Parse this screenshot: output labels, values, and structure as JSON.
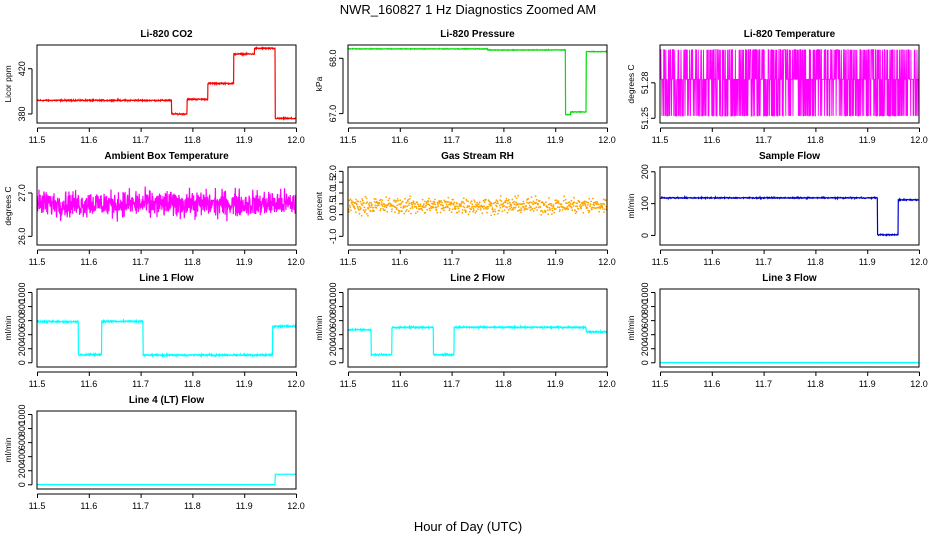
{
  "figure": {
    "title": "NWR_160827  1 Hz Diagnostics Zoomed AM",
    "xlabel": "Hour of Day (UTC)"
  },
  "colors": {
    "red": "#ff0000",
    "green": "#00dd00",
    "magenta": "#ff00ff",
    "orange": "#ffa500",
    "blue": "#0000cd",
    "cyan": "#00ffff"
  },
  "chart_data": [
    {
      "type": "line",
      "title": "Li-820 CO2",
      "ylabel": "Licor ppm",
      "color": "red",
      "xlim": [
        11.5,
        12.0
      ],
      "ylim": [
        372,
        441
      ],
      "yticks": [
        380,
        420
      ],
      "xticks": [
        11.5,
        11.6,
        11.7,
        11.8,
        11.9,
        12.0
      ],
      "steps": [
        [
          11.5,
          392
        ],
        [
          11.76,
          380
        ],
        [
          11.79,
          393
        ],
        [
          11.83,
          407
        ],
        [
          11.88,
          433
        ],
        [
          11.92,
          438
        ],
        [
          11.96,
          376
        ],
        [
          12.0,
          376
        ]
      ],
      "noise": 0.8
    },
    {
      "type": "line",
      "title": "Li-820 Pressure",
      "ylabel": "kPa",
      "color": "green",
      "xlim": [
        11.5,
        12.0
      ],
      "ylim": [
        66.83,
        68.24
      ],
      "yticks": [
        67.0,
        68.0
      ],
      "ytick_labels": [
        "67.0",
        "68.0"
      ],
      "xticks": [
        11.5,
        11.6,
        11.7,
        11.8,
        11.9,
        12.0
      ],
      "steps": [
        [
          11.5,
          68.17
        ],
        [
          11.77,
          68.15
        ],
        [
          11.92,
          66.98
        ],
        [
          11.93,
          67.03
        ],
        [
          11.96,
          68.12
        ],
        [
          12.0,
          68.12
        ]
      ],
      "noise": 0.008
    },
    {
      "type": "line",
      "title": "Li-820 Temperature",
      "ylabel": "degrees C",
      "color": "magenta",
      "xlim": [
        11.5,
        12.0
      ],
      "ylim": [
        51.246,
        51.312
      ],
      "yticks": [
        51.25,
        51.28
      ],
      "ytick_labels": [
        "51.25",
        "51.28"
      ],
      "xticks": [
        11.5,
        11.6,
        11.7,
        11.8,
        11.9,
        12.0
      ],
      "toggle": [
        51.252,
        51.283,
        51.308
      ]
    },
    {
      "type": "line",
      "title": "Ambient Box Temperature",
      "ylabel": "degrees C",
      "color": "magenta",
      "xlim": [
        11.5,
        12.0
      ],
      "ylim": [
        25.8,
        27.6
      ],
      "yticks": [
        26.0,
        27.0
      ],
      "ytick_labels": [
        "26.0",
        "27.0"
      ],
      "xticks": [
        11.5,
        11.6,
        11.7,
        11.8,
        11.9,
        12.0
      ],
      "steps": [
        [
          11.5,
          26.75
        ],
        [
          12.0,
          26.75
        ]
      ],
      "noise": 0.45
    },
    {
      "type": "scatter",
      "title": "Gas Stream RH",
      "ylabel": "percent",
      "color": "orange",
      "xlim": [
        11.5,
        12.0
      ],
      "ylim": [
        -1.4,
        2.2
      ],
      "yticks": [
        -1.0,
        0.0,
        0.5,
        1.0,
        1.5,
        2.0
      ],
      "ytick_labels": [
        "-1.0",
        "0.0",
        "0.5",
        "1.0",
        "1.5",
        "2.0"
      ],
      "xticks": [
        11.5,
        11.6,
        11.7,
        11.8,
        11.9,
        12.0
      ],
      "steps": [
        [
          11.5,
          0.42
        ],
        [
          12.0,
          0.42
        ]
      ],
      "noise": 0.55
    },
    {
      "type": "line",
      "title": "Sample Flow",
      "ylabel": "ml/min",
      "color": "blue",
      "xlim": [
        11.5,
        12.0
      ],
      "ylim": [
        -30,
        215
      ],
      "yticks": [
        0,
        100,
        200
      ],
      "xticks": [
        11.5,
        11.6,
        11.7,
        11.8,
        11.9,
        12.0
      ],
      "steps": [
        [
          11.5,
          118
        ],
        [
          11.92,
          2
        ],
        [
          11.96,
          112
        ],
        [
          12.0,
          112
        ]
      ],
      "noise": 2.5
    },
    {
      "type": "line",
      "title": "Line 1 Flow",
      "ylabel": "ml/min",
      "color": "cyan",
      "xlim": [
        11.5,
        12.0
      ],
      "ylim": [
        -60,
        1050
      ],
      "yticks": [
        0,
        200,
        400,
        600,
        800,
        1000
      ],
      "xticks": [
        11.5,
        11.6,
        11.7,
        11.8,
        11.9,
        12.0
      ],
      "steps": [
        [
          11.5,
          585
        ],
        [
          11.58,
          115
        ],
        [
          11.625,
          590
        ],
        [
          11.705,
          110
        ],
        [
          11.955,
          520
        ],
        [
          12.0,
          560
        ]
      ],
      "noise": 18
    },
    {
      "type": "line",
      "title": "Line 2 Flow",
      "ylabel": "ml/min",
      "color": "cyan",
      "xlim": [
        11.5,
        12.0
      ],
      "ylim": [
        -60,
        1050
      ],
      "yticks": [
        0,
        200,
        400,
        600,
        800,
        1000
      ],
      "xticks": [
        11.5,
        11.6,
        11.7,
        11.8,
        11.9,
        12.0
      ],
      "steps": [
        [
          11.5,
          470
        ],
        [
          11.545,
          115
        ],
        [
          11.585,
          505
        ],
        [
          11.665,
          115
        ],
        [
          11.705,
          505
        ],
        [
          11.96,
          440
        ],
        [
          12.0,
          440
        ]
      ],
      "noise": 15
    },
    {
      "type": "line",
      "title": "Line 3 Flow",
      "ylabel": "ml/min",
      "color": "cyan",
      "xlim": [
        11.5,
        12.0
      ],
      "ylim": [
        -60,
        1050
      ],
      "yticks": [
        0,
        200,
        400,
        600,
        800,
        1000
      ],
      "xticks": [
        11.5,
        11.6,
        11.7,
        11.8,
        11.9,
        12.0
      ],
      "steps": [
        [
          11.5,
          3
        ],
        [
          12.0,
          3
        ]
      ],
      "noise": 1
    },
    {
      "type": "line",
      "title": "Line 4 (LT) Flow",
      "ylabel": "ml/min",
      "color": "cyan",
      "xlim": [
        11.5,
        12.0
      ],
      "ylim": [
        -60,
        1050
      ],
      "yticks": [
        0,
        200,
        400,
        600,
        800,
        1000
      ],
      "xticks": [
        11.5,
        11.6,
        11.7,
        11.8,
        11.9,
        12.0
      ],
      "steps": [
        [
          11.5,
          3
        ],
        [
          11.96,
          150
        ],
        [
          12.0,
          150
        ]
      ],
      "noise": 1
    }
  ]
}
